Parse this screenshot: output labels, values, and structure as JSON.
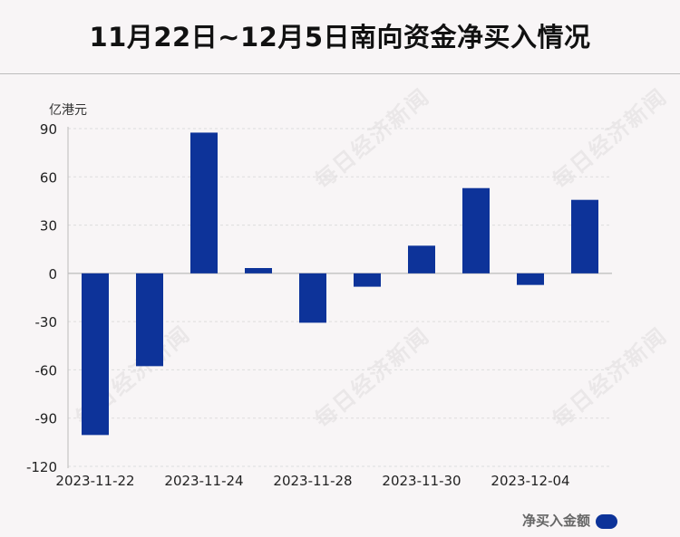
{
  "header": {
    "title": "11月22日~12月5日南向资金净买入情况"
  },
  "watermark_text": "每日经济新闻",
  "colors": {
    "bar": "#0d3399",
    "gridline": "#dddddd",
    "axis": "#bbbbbb",
    "background": "#f8f5f6"
  },
  "chart_data": {
    "type": "bar",
    "title": "11月22日~12月5日南向资金净买入情况",
    "ylabel": "亿港元",
    "xlabel": "",
    "ylim": [
      -120,
      90
    ],
    "yticks": [
      90,
      60,
      30,
      0,
      -30,
      -60,
      -90,
      -120
    ],
    "categories": [
      "2023-11-22",
      "2023-11-23",
      "2023-11-24",
      "2023-11-27",
      "2023-11-28",
      "2023-11-29",
      "2023-11-30",
      "2023-12-01",
      "2023-12-04",
      "2023-12-05"
    ],
    "x_tick_labels": [
      "2023-11-22",
      "2023-11-24",
      "2023-11-28",
      "2023-11-30",
      "2023-12-04"
    ],
    "series": [
      {
        "name": "净买入金额",
        "values": [
          -100.5,
          -57.7,
          87.5,
          3.3,
          -30.7,
          -8.3,
          17.2,
          53.0,
          -7.2,
          45.7
        ]
      }
    ],
    "grid": true,
    "legend_position": "bottom-right"
  },
  "legend": {
    "label": "净买入金额"
  }
}
